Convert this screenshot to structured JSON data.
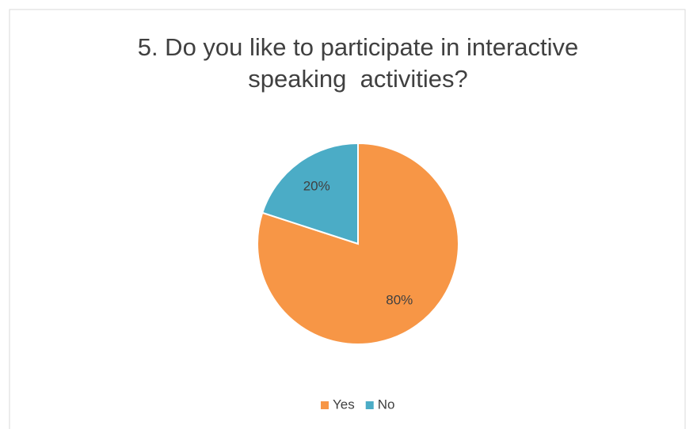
{
  "chart_data": {
    "type": "pie",
    "title": "5. Do you like to participate in interactive speaking  activities?",
    "categories": [
      "Yes",
      "No"
    ],
    "values": [
      80,
      20
    ],
    "value_labels": [
      "80%",
      "20%"
    ],
    "colors": [
      "#f79646",
      "#4bacc6"
    ],
    "legend": "bottom"
  }
}
